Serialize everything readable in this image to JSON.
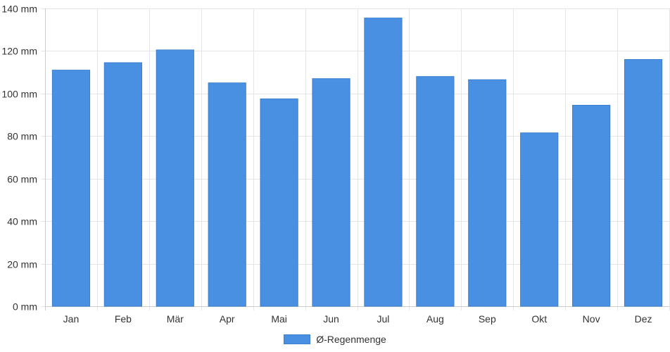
{
  "chart_data": {
    "type": "bar",
    "categories": [
      "Jan",
      "Feb",
      "Mär",
      "Apr",
      "Mai",
      "Jun",
      "Jul",
      "Aug",
      "Sep",
      "Okt",
      "Nov",
      "Dez"
    ],
    "series": [
      {
        "name": "Ø-Regenmenge",
        "values": [
          111,
          114.5,
          120.5,
          105,
          97.5,
          107,
          135.5,
          108,
          106.5,
          81.5,
          94.5,
          116
        ]
      }
    ],
    "ylim": [
      0,
      140
    ],
    "yticks": [
      0,
      20,
      40,
      60,
      80,
      100,
      120,
      140
    ],
    "yunit": "mm",
    "grid": true,
    "legend_position": "bottom-center",
    "colors": {
      "bar": "#4a90e2",
      "bar_border": "#3b7fd0",
      "grid": "#e5e5e5",
      "axis": "#cccccc"
    }
  }
}
